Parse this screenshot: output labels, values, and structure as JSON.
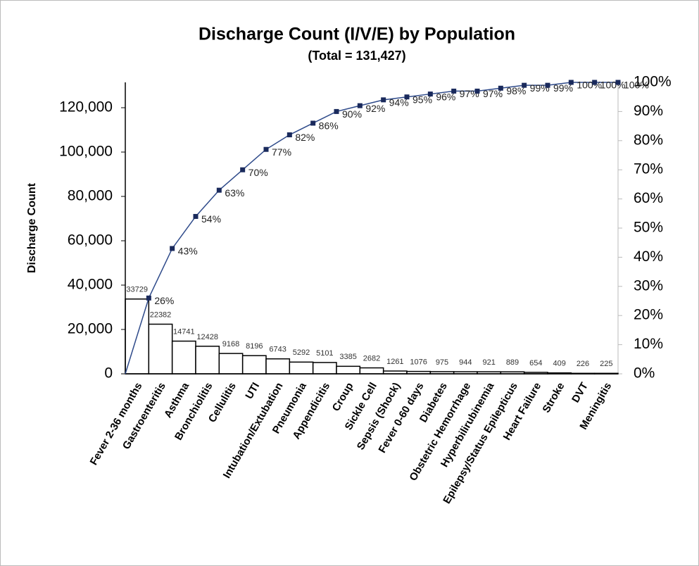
{
  "chart_data": {
    "type": "pareto",
    "title": "Discharge Count (I/V/E) by Population",
    "subtitle": "(Total = 131,427)",
    "y_label": "Discharge Count",
    "categories": [
      "Fever 2-36 months",
      "Gastroenteritis",
      "Asthma",
      "Bronchiolitis",
      "Cellulitis",
      "UTI",
      "Intubation/Extubation",
      "Pneumonia",
      "Appendicitis",
      "Croup",
      "Sickle Cell",
      "Sepsis (Shock)",
      "Fever 0-60 days",
      "Diabetes",
      "Obstetric Hemorrhage",
      "Hyperbilirubinemia",
      "Epilepsy/Status Epilepticus",
      "Heart Failure",
      "Stroke",
      "DVT",
      "Meningitis"
    ],
    "series": [
      {
        "name": "Discharge Count",
        "type": "bar",
        "color": "#ffffff",
        "values": [
          33729,
          22382,
          14741,
          12428,
          9168,
          8196,
          6743,
          5292,
          5101,
          3385,
          2682,
          1261,
          1076,
          975,
          944,
          921,
          889,
          654,
          409,
          226,
          225
        ]
      },
      {
        "name": "Cumulative %",
        "type": "line",
        "axis": "y2",
        "color": "#2e4a8a",
        "values": [
          26,
          43,
          54,
          63,
          70,
          77,
          82,
          86,
          90,
          92,
          94,
          95,
          96,
          97,
          97,
          98,
          99,
          99,
          100,
          100,
          100
        ],
        "value_labels": [
          "26%",
          "43%",
          "54%",
          "63%",
          "70%",
          "77%",
          "82%",
          "86%",
          "90%",
          "92%",
          "94%",
          "95%",
          "96%",
          "97%",
          "97%",
          "98%",
          "99%",
          "99%",
          "100%",
          "100%",
          "100%"
        ]
      }
    ],
    "ylim": [
      0,
      131427
    ],
    "yticks": [
      0,
      {
        "value": 20000,
        "label": "20,000"
      },
      {
        "value": 40000,
        "label": "40,000"
      },
      {
        "value": 60000,
        "label": "60,000"
      },
      {
        "value": 80000,
        "label": "80,000"
      },
      {
        "value": 100000,
        "label": "100,000"
      },
      {
        "value": 120000,
        "label": "120,000"
      }
    ],
    "y2lim": [
      0,
      100
    ],
    "y2ticks": [
      {
        "value": 0,
        "label": "0%"
      },
      {
        "value": 10,
        "label": "10%"
      },
      {
        "value": 20,
        "label": "20%"
      },
      {
        "value": 30,
        "label": "30%"
      },
      {
        "value": 40,
        "label": "40%"
      },
      {
        "value": 50,
        "label": "50%"
      },
      {
        "value": 60,
        "label": "60%"
      },
      {
        "value": 70,
        "label": "70%"
      },
      {
        "value": 80,
        "label": "80%"
      },
      {
        "value": 90,
        "label": "90%"
      },
      {
        "value": 100,
        "label": "100%"
      }
    ],
    "grid": false
  }
}
